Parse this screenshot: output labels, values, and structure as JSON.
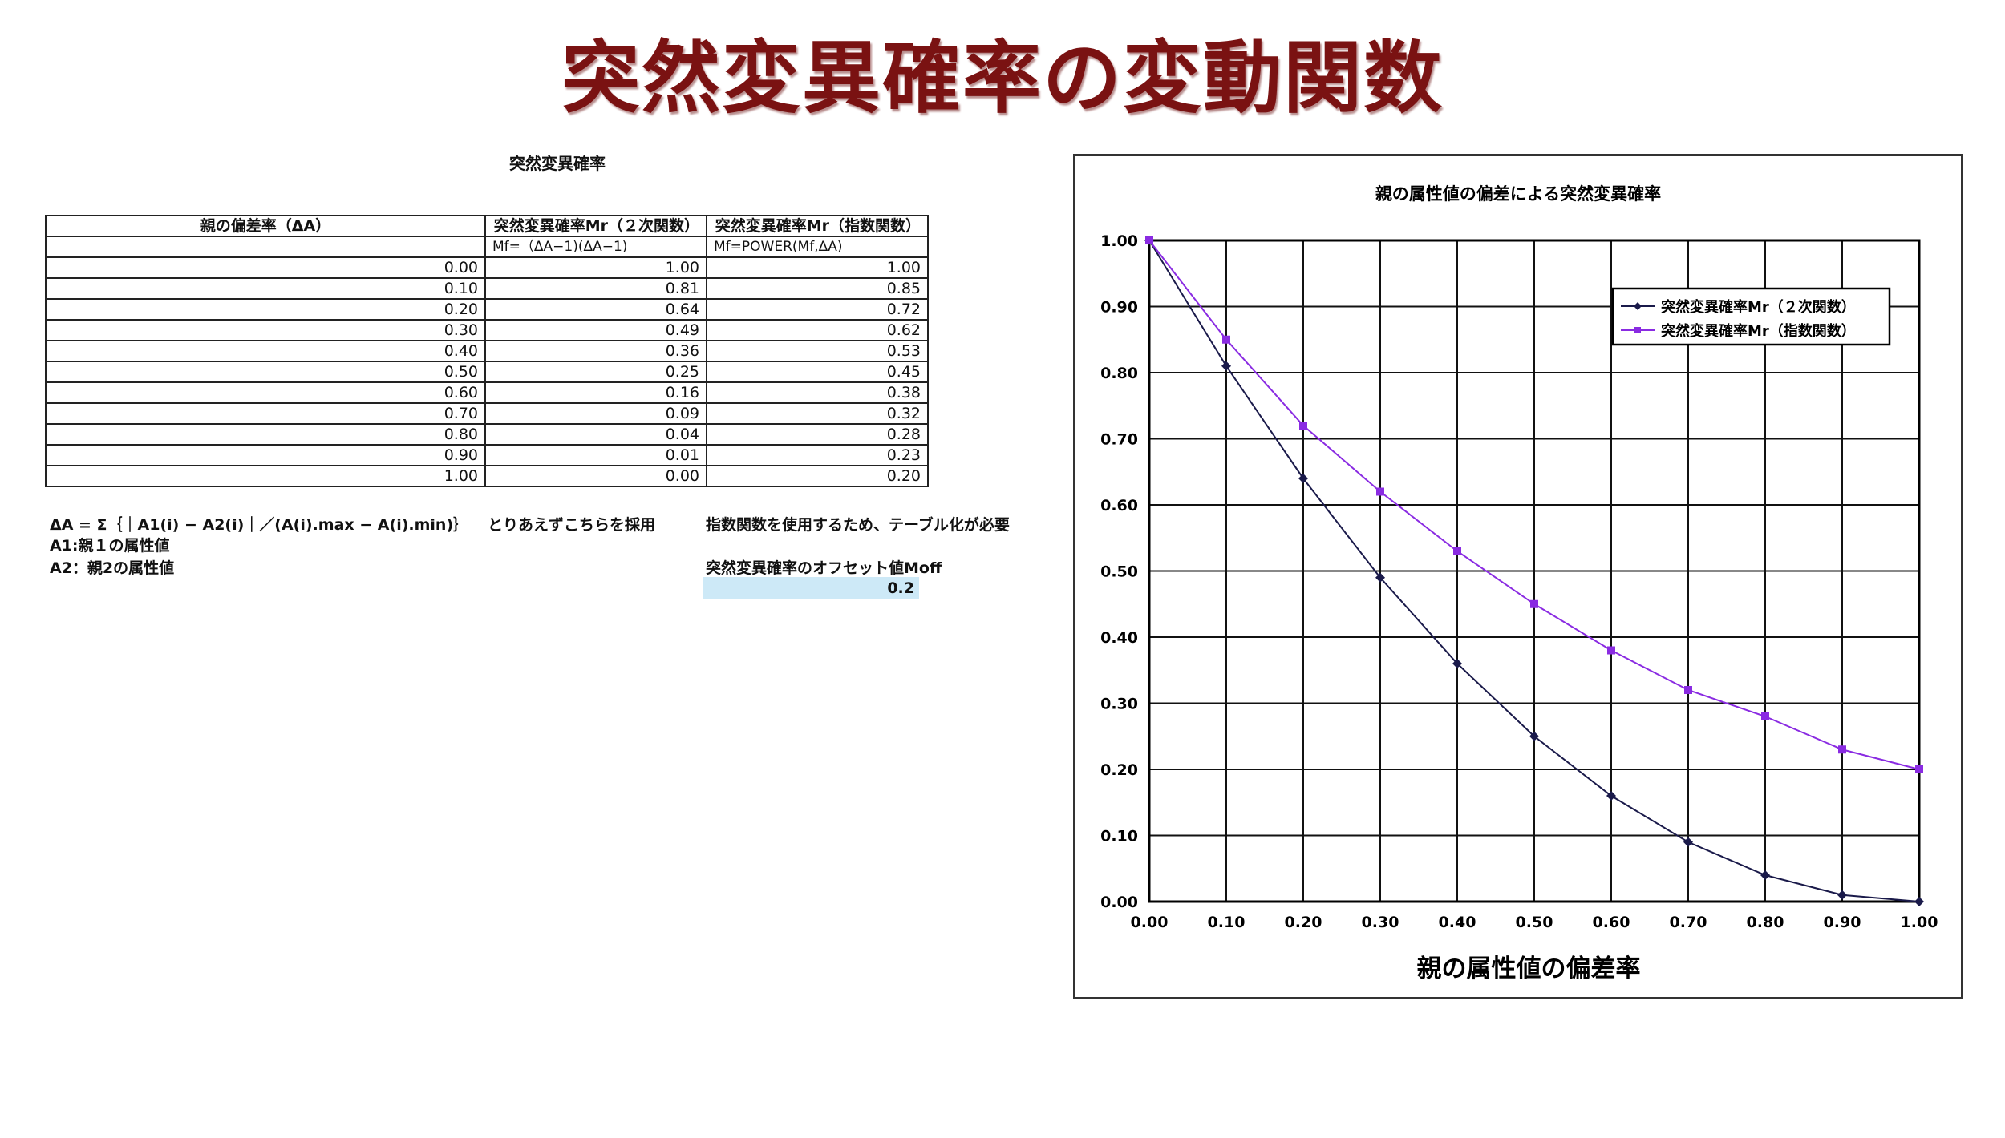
{
  "page": {
    "title": "突然変異確率の変動関数",
    "sheet_caption": "突然変異確率"
  },
  "table": {
    "headers": [
      "親の偏差率（ΔA）",
      "突然変異確率Mr（２次関数）",
      "突然変異確率Mr（指数関数）"
    ],
    "formulas": [
      "",
      "Mf=（ΔA−1)(ΔA−1)",
      "Mf=POWER(Mf,ΔA)"
    ],
    "rows": [
      [
        "0.00",
        "1.00",
        "1.00"
      ],
      [
        "0.10",
        "0.81",
        "0.85"
      ],
      [
        "0.20",
        "0.64",
        "0.72"
      ],
      [
        "0.30",
        "0.49",
        "0.62"
      ],
      [
        "0.40",
        "0.36",
        "0.53"
      ],
      [
        "0.50",
        "0.25",
        "0.45"
      ],
      [
        "0.60",
        "0.16",
        "0.38"
      ],
      [
        "0.70",
        "0.09",
        "0.32"
      ],
      [
        "0.80",
        "0.04",
        "0.28"
      ],
      [
        "0.90",
        "0.01",
        "0.23"
      ],
      [
        "1.00",
        "0.00",
        "0.20"
      ]
    ]
  },
  "notes": {
    "delta_formula": "ΔA = Σ｛｜A1(i) − A2(i)｜／(A(i).max − A(i).min)｝",
    "a1": "A1:親１の属性値",
    "a2": "A2：親2の属性値",
    "adopt": "とりあえずこちらを採用",
    "exp_note": "指数関数を使用するため、テーブル化が必要",
    "offset_label": "突然変異確率のオフセット値Moff",
    "offset_value": "0.2"
  },
  "colors": {
    "title": "#7a1212",
    "series_quadratic": "#1a1a4a",
    "series_exponential": "#8a2be2",
    "offset_cell": "#cde9f7"
  },
  "chart_data": {
    "type": "line",
    "title": "親の属性値の偏差による突然変異確率",
    "xlabel": "親の属性値の偏差率",
    "ylabel": "",
    "x": [
      0.0,
      0.1,
      0.2,
      0.3,
      0.4,
      0.5,
      0.6,
      0.7,
      0.8,
      0.9,
      1.0
    ],
    "xlim": [
      0,
      1
    ],
    "ylim": [
      0,
      1
    ],
    "x_ticks": [
      "0.00",
      "0.10",
      "0.20",
      "0.30",
      "0.40",
      "0.50",
      "0.60",
      "0.70",
      "0.80",
      "0.90",
      "1.00"
    ],
    "y_ticks": [
      "0.00",
      "0.10",
      "0.20",
      "0.30",
      "0.40",
      "0.50",
      "0.60",
      "0.70",
      "0.80",
      "0.90",
      "1.00"
    ],
    "grid": true,
    "legend_position": "top-right",
    "series": [
      {
        "name": "突然変異確率Mr（２次関数）",
        "marker": "diamond",
        "color": "#1a1a4a",
        "values": [
          1.0,
          0.81,
          0.64,
          0.49,
          0.36,
          0.25,
          0.16,
          0.09,
          0.04,
          0.01,
          0.0
        ]
      },
      {
        "name": "突然変異確率Mr（指数関数）",
        "marker": "square",
        "color": "#8a2be2",
        "values": [
          1.0,
          0.85,
          0.72,
          0.62,
          0.53,
          0.45,
          0.38,
          0.32,
          0.28,
          0.23,
          0.2
        ]
      }
    ]
  }
}
